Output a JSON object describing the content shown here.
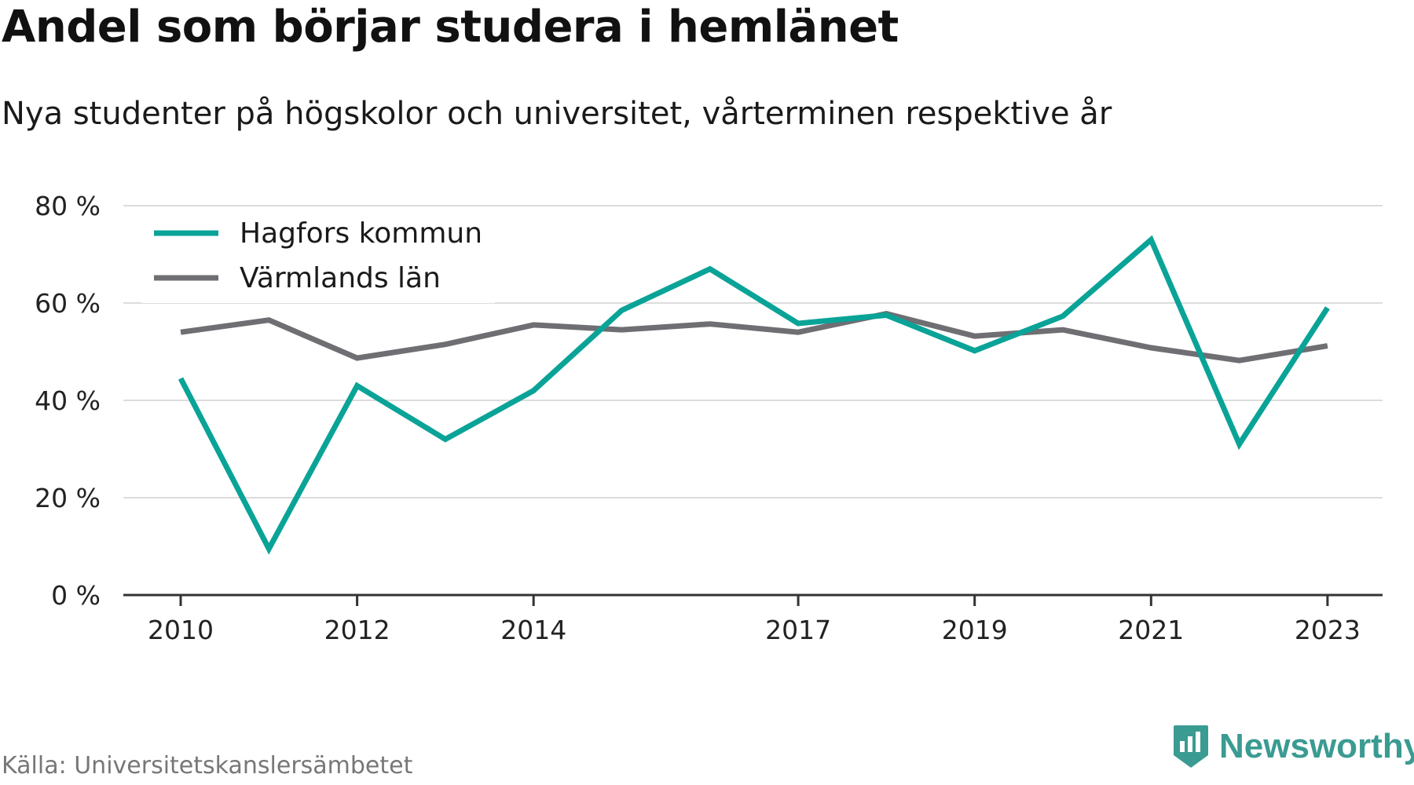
{
  "title": "Andel som börjar studera i hemlänet",
  "subtitle": "Nya studenter på högskolor och universitet, vårterminen respektive år",
  "source": "Källa: Universitetskanslersämbetet",
  "brand": {
    "name": "Newsworthy",
    "color": "#3a9b92",
    "icon": "newsworthy-logo-icon"
  },
  "chart_data": {
    "type": "line",
    "x": [
      2010,
      2011,
      2012,
      2013,
      2014,
      2015,
      2016,
      2017,
      2018,
      2019,
      2020,
      2021,
      2022,
      2023
    ],
    "x_ticks": [
      "2010",
      "2012",
      "2014",
      "2017",
      "2019",
      "2021",
      "2023"
    ],
    "y_ticks": [
      "0 %",
      "20 %",
      "40 %",
      "60 %",
      "80 %"
    ],
    "ylim": [
      0,
      80
    ],
    "grid": true,
    "legend": "top-left",
    "series": [
      {
        "name": "Hagfors kommun",
        "color": "#0aa397",
        "values": [
          44.5,
          9.5,
          43,
          32,
          42,
          58.5,
          67,
          55.8,
          57.5,
          50.2,
          57.3,
          73,
          31,
          59
        ]
      },
      {
        "name": "Värmlands län",
        "color": "#6e6e73",
        "values": [
          54,
          56.5,
          48.7,
          51.5,
          55.5,
          54.5,
          55.7,
          54,
          57.8,
          53.2,
          54.5,
          50.8,
          48.2,
          51.2
        ]
      }
    ]
  }
}
